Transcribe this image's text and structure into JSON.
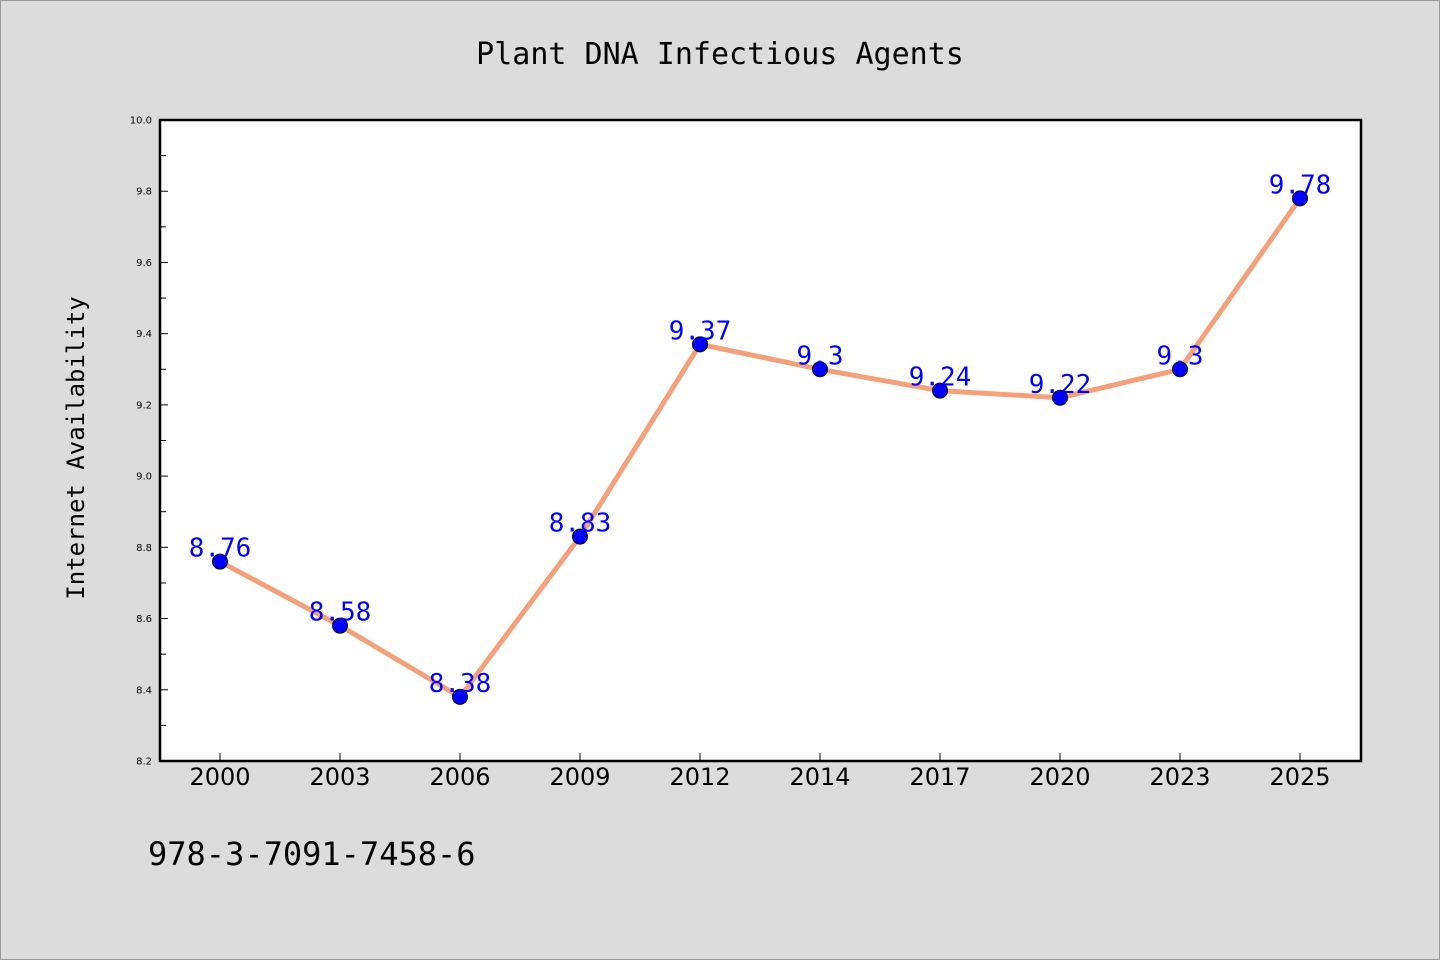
{
  "chart_data": {
    "type": "line",
    "title": "Plant DNA Infectious Agents",
    "ylabel": "Internet Availability",
    "xlabel": "",
    "categories": [
      "2000",
      "2003",
      "2006",
      "2009",
      "2012",
      "2014",
      "2017",
      "2020",
      "2023",
      "2025"
    ],
    "series": [
      {
        "values": [
          8.76,
          8.58,
          8.38,
          8.83,
          9.37,
          9.3,
          9.24,
          9.22,
          9.3,
          9.78
        ]
      }
    ],
    "data_labels": [
      "8.76",
      "8.58",
      "8.38",
      "8.83",
      "9.37",
      "9.3",
      "9.24",
      "9.22",
      "9.3",
      "9.78"
    ],
    "ylim": [
      8.2,
      10.0
    ],
    "yticks": [
      "8.2",
      "8.4",
      "8.6",
      "8.8",
      "9.0",
      "9.2",
      "9.4",
      "9.6",
      "9.8",
      "10.0"
    ],
    "grid": false,
    "legend": "none",
    "line_color": "#f4a07a",
    "marker_color": "#0000ff",
    "label_color": "#0000ff",
    "background_color": "#dcdcdc",
    "plot_background": "#ffffff"
  },
  "footer": {
    "isbn": "978-3-7091-7458-6"
  }
}
